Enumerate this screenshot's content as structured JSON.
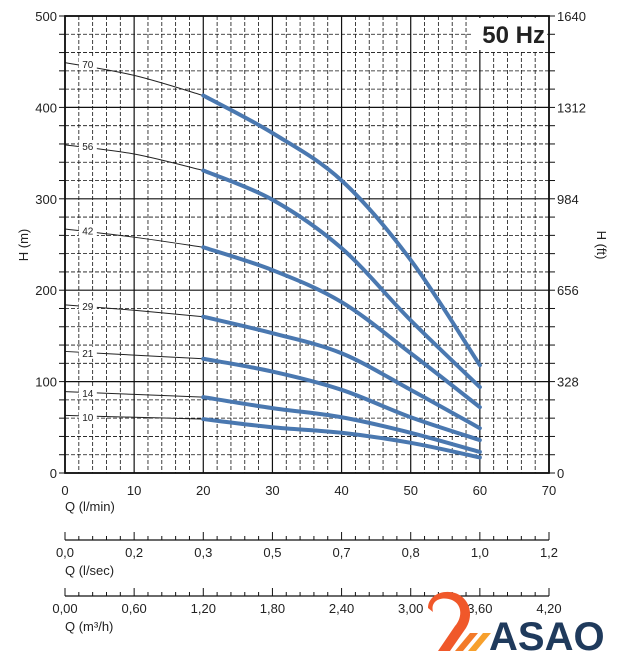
{
  "chart_data": {
    "type": "line",
    "badge": "50 Hz",
    "xlabel": "Q (l/min)",
    "ylabel_left": "H (m)",
    "ylabel_right": "H (ft)",
    "xlim": [
      0,
      70
    ],
    "ylim": [
      0,
      500
    ],
    "x_ticks": [
      "0",
      "10",
      "20",
      "30",
      "40",
      "50",
      "60",
      "70"
    ],
    "y_ticks_left": [
      "0",
      "100",
      "200",
      "300",
      "400",
      "500"
    ],
    "y_ticks_right": [
      "0",
      "328",
      "656",
      "984",
      "1312",
      "1640"
    ],
    "grid": true,
    "secondary_axes": [
      {
        "label": "Q (l/sec)",
        "ticks": [
          "0,0",
          "0,2",
          "0,3",
          "0,5",
          "0,7",
          "0,8",
          "1,0",
          "1,2"
        ]
      },
      {
        "label": "Q (m³/h)",
        "ticks": [
          "0,00",
          "0,60",
          "1,20",
          "1,80",
          "2,40",
          "3,00",
          "3,60",
          "4,20"
        ]
      }
    ],
    "x": [
      0,
      10,
      20,
      30,
      40,
      50,
      60
    ],
    "operating_range": [
      20,
      60
    ],
    "series": [
      {
        "name": "70",
        "values": [
          449,
          435,
          413,
          372,
          320,
          233,
          118
        ]
      },
      {
        "name": "56",
        "values": [
          359,
          349,
          331,
          299,
          246,
          167,
          94
        ]
      },
      {
        "name": "42",
        "values": [
          267,
          258,
          247,
          222,
          187,
          131,
          72
        ]
      },
      {
        "name": "29",
        "values": [
          184,
          178,
          171,
          153,
          131,
          91,
          49
        ]
      },
      {
        "name": "21",
        "values": [
          133,
          129,
          125,
          111,
          91,
          61,
          36
        ]
      },
      {
        "name": "14",
        "values": [
          89,
          86,
          83,
          71,
          61,
          44,
          23
        ]
      },
      {
        "name": "10",
        "values": [
          63,
          61,
          59,
          50,
          44,
          33,
          17
        ]
      }
    ],
    "colors": {
      "curve": "#4a78b0",
      "thin_curve": "#222222",
      "grid": "#111111"
    }
  },
  "logo": {
    "text": "ASAO",
    "colors": {
      "text": "#1f3a5c",
      "mark": "#f0582a",
      "mark_light": "#f7a02c"
    }
  }
}
